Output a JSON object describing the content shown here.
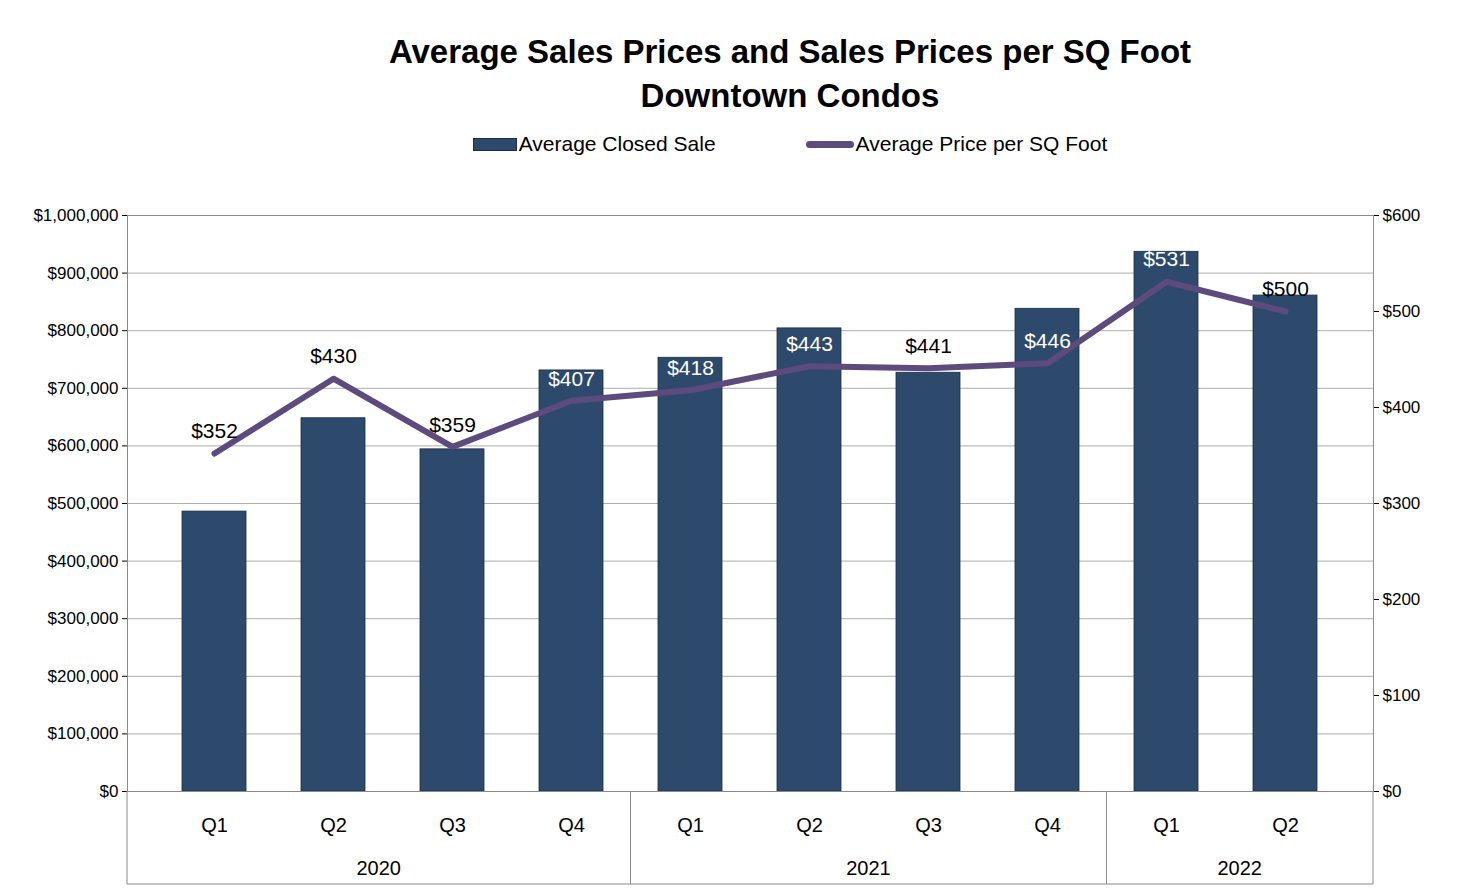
{
  "chart_data": {
    "type": "bar",
    "title": "Average Sales Prices and Sales Prices per SQ Foot",
    "subtitle": "Downtown Condos",
    "categories": [
      "Q1",
      "Q2",
      "Q3",
      "Q4",
      "Q1",
      "Q2",
      "Q3",
      "Q4",
      "Q1",
      "Q2"
    ],
    "years": [
      "2020",
      "2020",
      "2020",
      "2020",
      "2021",
      "2021",
      "2021",
      "2021",
      "2022",
      "2022"
    ],
    "series": [
      {
        "name": "Average Closed Sale",
        "type": "bar",
        "color": "#2d4a6d",
        "values": [
          486000,
          648000,
          594000,
          731000,
          753000,
          804000,
          727000,
          838000,
          937000,
          861000
        ]
      },
      {
        "name": "Average Price per SQ Foot",
        "type": "line",
        "axis": "y2",
        "color": "#5e4b7e",
        "data_labels": true,
        "values": [
          352,
          430,
          359,
          407,
          418,
          443,
          441,
          446,
          531,
          500
        ],
        "value_labels": [
          "$352",
          "$430",
          "$359",
          "$407",
          "$418",
          "$443",
          "$441",
          "$446",
          "$531",
          "$500"
        ]
      }
    ],
    "ylim": [
      0,
      1000000
    ],
    "yticks": [
      {
        "value": 0,
        "label": "$0"
      },
      {
        "value": 100000,
        "label": "$100,000"
      },
      {
        "value": 200000,
        "label": "$200,000"
      },
      {
        "value": 300000,
        "label": "$300,000"
      },
      {
        "value": 400000,
        "label": "$400,000"
      },
      {
        "value": 500000,
        "label": "$500,000"
      },
      {
        "value": 600000,
        "label": "$600,000"
      },
      {
        "value": 700000,
        "label": "$700,000"
      },
      {
        "value": 800000,
        "label": "$800,000"
      },
      {
        "value": 900000,
        "label": "$900,000"
      },
      {
        "value": 1000000,
        "label": "$1,000,000"
      }
    ],
    "y2lim": [
      0,
      600
    ],
    "y2ticks": [
      {
        "value": 0,
        "label": "$0"
      },
      {
        "value": 100,
        "label": "$100"
      },
      {
        "value": 200,
        "label": "$200"
      },
      {
        "value": 300,
        "label": "$300"
      },
      {
        "value": 400,
        "label": "$400"
      },
      {
        "value": 500,
        "label": "$500"
      },
      {
        "value": 600,
        "label": "$600"
      }
    ],
    "grid": true,
    "legend": "top"
  }
}
